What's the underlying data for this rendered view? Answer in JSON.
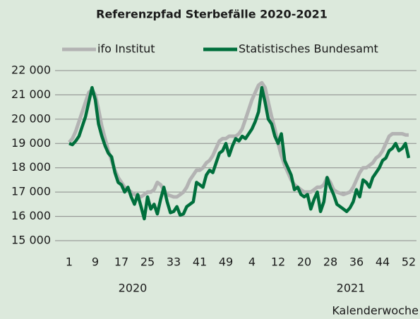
{
  "chart_data": {
    "type": "line",
    "title": "Referenzpfad Sterbefälle 2020-2021",
    "x_label": "Kalenderwoche",
    "x_groups": [
      "2020",
      "2021"
    ],
    "categories": [
      "1",
      null,
      null,
      null,
      null,
      null,
      null,
      null,
      "9",
      null,
      null,
      null,
      null,
      null,
      null,
      null,
      "17",
      null,
      null,
      null,
      null,
      null,
      null,
      null,
      "25",
      null,
      null,
      null,
      null,
      null,
      null,
      null,
      "33",
      null,
      null,
      null,
      null,
      null,
      null,
      null,
      "41",
      null,
      null,
      null,
      null,
      null,
      null,
      null,
      "49",
      null,
      null,
      null,
      null,
      null,
      null,
      null,
      "4",
      null,
      null,
      null,
      null,
      null,
      null,
      null,
      "12",
      null,
      null,
      null,
      null,
      null,
      null,
      null,
      "20",
      null,
      null,
      null,
      null,
      null,
      null,
      null,
      "28",
      null,
      null,
      null,
      null,
      null,
      null,
      null,
      "36",
      null,
      null,
      null,
      null,
      null,
      null,
      null,
      "44",
      null,
      null,
      null,
      null,
      null,
      null,
      null,
      "52"
    ],
    "series": [
      {
        "name": "ifo Institut",
        "color": "#b3b3b3",
        "values": [
          19050,
          19200,
          19500,
          19900,
          20300,
          20700,
          21100,
          21200,
          21000,
          20400,
          19700,
          19200,
          18700,
          18300,
          17900,
          17600,
          17400,
          17200,
          17100,
          17000,
          16900,
          16850,
          16800,
          16900,
          17000,
          17000,
          17100,
          17400,
          17300,
          17100,
          16900,
          16850,
          16800,
          16800,
          16900,
          17000,
          17200,
          17500,
          17700,
          17900,
          17900,
          18000,
          18200,
          18300,
          18500,
          18800,
          19100,
          19200,
          19200,
          19300,
          19300,
          19300,
          19400,
          19600,
          20000,
          20400,
          20800,
          21100,
          21400,
          21500,
          21300,
          20700,
          20100,
          19600,
          19000,
          18500,
          18100,
          17800,
          17500,
          17300,
          17200,
          17100,
          17000,
          17000,
          17000,
          17100,
          17200,
          17200,
          17300,
          17600,
          17400,
          17100,
          17000,
          16950,
          16900,
          16950,
          17000,
          17200,
          17500,
          17800,
          18000,
          18000,
          18100,
          18200,
          18400,
          18500,
          18700,
          19000,
          19300,
          19400,
          19400,
          19400,
          19400,
          19350,
          19350
        ]
      },
      {
        "name": "Statistisches Bundesamt",
        "color": "#006f3c",
        "values": [
          19000,
          18950,
          19100,
          19300,
          19700,
          20100,
          20700,
          21300,
          20800,
          19800,
          19300,
          18900,
          18600,
          18450,
          17800,
          17400,
          17300,
          17000,
          17200,
          16800,
          16500,
          16900,
          16400,
          15900,
          16800,
          16300,
          16500,
          16100,
          16700,
          17200,
          16600,
          16150,
          16200,
          16400,
          16050,
          16100,
          16400,
          16500,
          16600,
          17400,
          17300,
          17200,
          17700,
          17900,
          17800,
          18200,
          18600,
          18700,
          19000,
          18500,
          18900,
          19200,
          19100,
          19300,
          19200,
          19400,
          19600,
          19900,
          20300,
          21300,
          20700,
          20000,
          19800,
          19300,
          19000,
          19400,
          18300,
          18000,
          17700,
          17100,
          17200,
          16900,
          16800,
          16900,
          16300,
          16700,
          17000,
          16200,
          16600,
          17600,
          17200,
          16900,
          16500,
          16400,
          16300,
          16200,
          16350,
          16600,
          17100,
          16800,
          17500,
          17400,
          17200,
          17600,
          17800,
          18000,
          18300,
          18400,
          18700,
          18800,
          19000,
          18700,
          18800,
          19000,
          18400
        ]
      }
    ],
    "ylim": [
      15000,
      22000
    ],
    "yticks": [
      {
        "value": 15000,
        "label": "15 000"
      },
      {
        "value": 16000,
        "label": "16 000"
      },
      {
        "value": 17000,
        "label": "17 000"
      },
      {
        "value": 18000,
        "label": "18 000"
      },
      {
        "value": 19000,
        "label": "19 000"
      },
      {
        "value": 20000,
        "label": "20 000"
      },
      {
        "value": 21000,
        "label": "21 000"
      },
      {
        "value": 22000,
        "label": "22 000"
      }
    ],
    "grid": true,
    "legend": "top"
  }
}
